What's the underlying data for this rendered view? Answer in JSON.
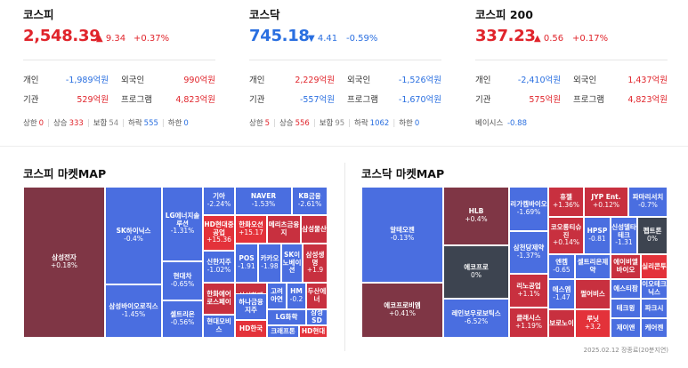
{
  "kospi": {
    "name": "코스피",
    "value": "2,548.39",
    "change": "9.34",
    "percent": "+0.37%",
    "rows": [
      {
        "l1": "개인",
        "v1": "-1,989억원",
        "c1": "down",
        "l2": "외국인",
        "v2": "990억원",
        "c2": "up"
      },
      {
        "l1": "기관",
        "v1": "529억원",
        "c1": "up",
        "l2": "프로그램",
        "v2": "4,823억원",
        "c2": "up"
      }
    ],
    "stats": {
      "upper_l": "상한",
      "upper_v": "0",
      "rise_l": "상승",
      "rise_v": "333",
      "flat_l": "보합",
      "flat_v": "54",
      "fall_l": "하락",
      "fall_v": "555",
      "lower_l": "하한",
      "lower_v": "0"
    }
  },
  "kosdaq": {
    "name": "코스닥",
    "value": "745.18",
    "change": "4.41",
    "percent": "-0.59%",
    "rows": [
      {
        "l1": "개인",
        "v1": "2,229억원",
        "c1": "up",
        "l2": "외국인",
        "v2": "-1,526억원",
        "c2": "down"
      },
      {
        "l1": "기관",
        "v1": "-557억원",
        "c1": "down",
        "l2": "프로그램",
        "v2": "-1,670억원",
        "c2": "down"
      }
    ],
    "stats": {
      "upper_l": "상한",
      "upper_v": "5",
      "rise_l": "상승",
      "rise_v": "556",
      "flat_l": "보합",
      "flat_v": "95",
      "fall_l": "하락",
      "fall_v": "1062",
      "lower_l": "하한",
      "lower_v": "0"
    }
  },
  "kospi200": {
    "name": "코스피 200",
    "value": "337.23",
    "change": "0.56",
    "percent": "+0.17%",
    "rows": [
      {
        "l1": "개인",
        "v1": "-2,410억원",
        "c1": "down",
        "l2": "외국인",
        "v2": "1,437억원",
        "c2": "up"
      },
      {
        "l1": "기관",
        "v1": "575억원",
        "c1": "up",
        "l2": "프로그램",
        "v2": "4,823억원",
        "c2": "up"
      }
    ],
    "basis_label": "베이시스",
    "basis_value": "-0.88"
  },
  "colors": {
    "dark_red": "#7f3645",
    "red": "#c8303f",
    "bright_red": "#e3323a",
    "blue": "#4a6ee0",
    "light_blue": "#5d80ea",
    "gray": "#3d4450"
  },
  "kospi_map_title": "코스피 마켓MAP",
  "kosdaq_map_title": "코스닥 마켓MAP",
  "kospi_map": [
    {
      "n": "삼성전자",
      "p": "+0.18%",
      "c": "dark_red"
    },
    {
      "n": "SK하이닉스",
      "p": "-0.4%",
      "c": "blue"
    },
    {
      "n": "삼성바이오로직스",
      "p": "-1.45%",
      "c": "blue"
    },
    {
      "n": "LG에너지솔루션",
      "p": "-1.31%",
      "c": "blue"
    },
    {
      "n": "현대차",
      "p": "-0.65%",
      "c": "blue"
    },
    {
      "n": "셀트리온",
      "p": "-0.56%",
      "c": "blue"
    },
    {
      "n": "기아",
      "p": "-2.24%",
      "c": "blue"
    },
    {
      "n": "NAVER",
      "p": "-1.53%",
      "c": "blue"
    },
    {
      "n": "KB금융",
      "p": "-2.61%",
      "c": "blue"
    },
    {
      "n": "HD현대중공업",
      "p": "+15.36",
      "c": "bright_red"
    },
    {
      "n": "한화오션",
      "p": "+15.17",
      "c": "bright_red"
    },
    {
      "n": "메리츠금융지",
      "p": "",
      "c": "red"
    },
    {
      "n": "삼성물산",
      "p": "",
      "c": "red"
    },
    {
      "n": "신한지주",
      "p": "-1.02%",
      "c": "blue"
    },
    {
      "n": "POS",
      "p": "-1.91",
      "c": "blue"
    },
    {
      "n": "카카오",
      "p": "-1.98",
      "c": "blue"
    },
    {
      "n": "SK이노베이션",
      "p": "",
      "c": "blue"
    },
    {
      "n": "삼성생명",
      "p": "+1.9",
      "c": "red"
    },
    {
      "n": "한화에어로스페이",
      "p": "",
      "c": "red"
    },
    {
      "n": "삼성화재",
      "p": "",
      "c": "red"
    },
    {
      "n": "고려아연",
      "p": "",
      "c": "blue"
    },
    {
      "n": "HM",
      "p": "-0.2",
      "c": "blue"
    },
    {
      "n": "두산에너",
      "p": "",
      "c": "red"
    },
    {
      "n": "현대모비스",
      "p": "",
      "c": "blue"
    },
    {
      "n": "하나금융지주",
      "p": "",
      "c": "blue"
    },
    {
      "n": "LG화학",
      "p": "",
      "c": "blue"
    },
    {
      "n": "삼성SD",
      "p": "",
      "c": "blue"
    },
    {
      "n": "HD한국",
      "p": "",
      "c": "bright_red"
    },
    {
      "n": "크래프톤",
      "p": "",
      "c": "blue"
    },
    {
      "n": "HD현대",
      "p": "",
      "c": "bright_red"
    }
  ],
  "kosdaq_map": [
    {
      "n": "알테오젠",
      "p": "-0.13%",
      "c": "blue"
    },
    {
      "n": "에코프로비엠",
      "p": "+0.41%",
      "c": "dark_red"
    },
    {
      "n": "HLB",
      "p": "+0.4%",
      "c": "dark_red"
    },
    {
      "n": "에코프로",
      "p": "0%",
      "c": "gray"
    },
    {
      "n": "레인보우로보틱스",
      "p": "-6.52%",
      "c": "blue"
    },
    {
      "n": "리가켐바이오",
      "p": "-1.69%",
      "c": "blue"
    },
    {
      "n": "삼천당제약",
      "p": "-1.37%",
      "c": "blue"
    },
    {
      "n": "리노공업",
      "p": "+1.1%",
      "c": "red"
    },
    {
      "n": "클래시스",
      "p": "+1.19%",
      "c": "red"
    },
    {
      "n": "휴젤",
      "p": "+1.36%",
      "c": "red"
    },
    {
      "n": "JYP Ent.",
      "p": "+0.12%",
      "c": "red"
    },
    {
      "n": "파마리서치",
      "p": "-0.7%",
      "c": "blue"
    },
    {
      "n": "코오롱티슈진",
      "p": "+0.14%",
      "c": "red"
    },
    {
      "n": "HPSP",
      "p": "-0.81",
      "c": "blue"
    },
    {
      "n": "신성델타테크",
      "p": "-1.31",
      "c": "blue"
    },
    {
      "n": "펩트론",
      "p": "0%",
      "c": "gray"
    },
    {
      "n": "엔켐",
      "p": "-0.65",
      "c": "blue"
    },
    {
      "n": "셀트리온제약",
      "p": "",
      "c": "blue"
    },
    {
      "n": "에이비엘바이오",
      "p": "",
      "c": "red"
    },
    {
      "n": "실리콘투",
      "p": "",
      "c": "bright_red"
    },
    {
      "n": "에스엠",
      "p": "-1.47",
      "c": "blue"
    },
    {
      "n": "펄어비스",
      "p": "",
      "c": "red"
    },
    {
      "n": "에스티팜",
      "p": "",
      "c": "blue"
    },
    {
      "n": "이오테크닉스",
      "p": "",
      "c": "blue"
    },
    {
      "n": "테크윙",
      "p": "",
      "c": "blue"
    },
    {
      "n": "파크시",
      "p": "",
      "c": "blue"
    },
    {
      "n": "보로노이",
      "p": "",
      "c": "red"
    },
    {
      "n": "루닛",
      "p": "+3.2",
      "c": "bright_red"
    },
    {
      "n": "제이앤",
      "p": "",
      "c": "blue"
    },
    {
      "n": "케어젠",
      "p": "",
      "c": "blue"
    }
  ],
  "footer": "2025.02.12 장종료(20분지연)"
}
